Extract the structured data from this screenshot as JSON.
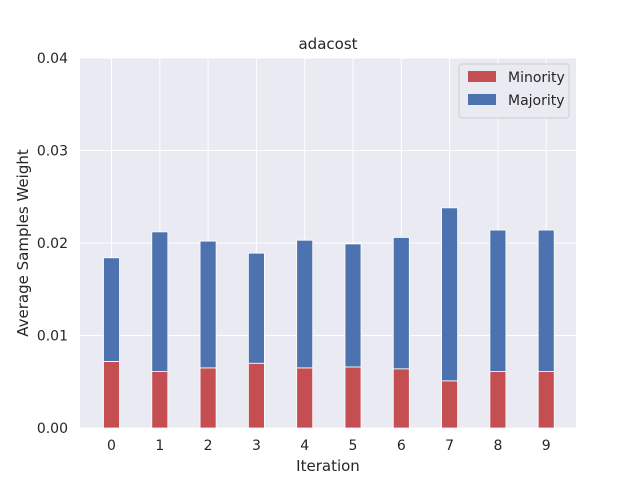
{
  "chart_data": {
    "type": "bar",
    "stacked": true,
    "title": "adacost",
    "xlabel": "Iteration",
    "ylabel": "Average Samples Weight",
    "categories": [
      "0",
      "1",
      "2",
      "3",
      "4",
      "5",
      "6",
      "7",
      "8",
      "9"
    ],
    "ylim": [
      0,
      0.04
    ],
    "yticks": [
      "0.00",
      "0.01",
      "0.02",
      "0.03",
      "0.04"
    ],
    "grid": true,
    "legend_position": "top-right",
    "series": [
      {
        "name": "Minority",
        "color": "#c44e52",
        "values": [
          0.0072,
          0.0061,
          0.0065,
          0.007,
          0.0065,
          0.0066,
          0.0064,
          0.0051,
          0.0061,
          0.0061
        ]
      },
      {
        "name": "Majority",
        "color": "#4c72b0",
        "values": [
          0.0112,
          0.0151,
          0.0137,
          0.0119,
          0.0138,
          0.0133,
          0.0142,
          0.0187,
          0.0153,
          0.0153
        ]
      }
    ]
  }
}
